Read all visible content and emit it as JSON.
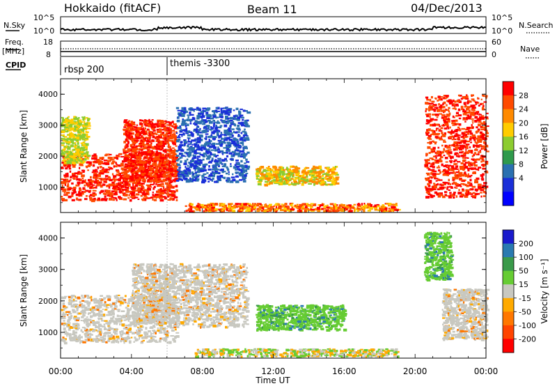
{
  "header": {
    "title": "Hokkaido (fitACF)",
    "beam": "Beam 11",
    "date": "04/Dec/2013"
  },
  "noise_panel": {
    "left_label": "N.Sky",
    "right_label": "N.Search",
    "left_ticks": [
      "10^5",
      "10^0"
    ],
    "right_ticks": [
      "10^5",
      "10^0"
    ]
  },
  "freq_panel": {
    "left_label_1": "Freq.",
    "left_label_2": "[MHz]",
    "right_label": "Nave",
    "left_ticks": [
      "18",
      "8"
    ],
    "right_ticks": [
      "60",
      "0"
    ]
  },
  "cpid": {
    "label": "CPID",
    "program_1": "rbsp 200",
    "program_2": "themis -3300"
  },
  "power_colorbar": {
    "label": "Power [dB]",
    "ticks": [
      "28",
      "24",
      "20",
      "16",
      "12",
      "8",
      "4"
    ],
    "colors": [
      "#ff0000",
      "#ff4a00",
      "#ff8a00",
      "#ffcc00",
      "#8ccc30",
      "#2f9a4c",
      "#2a70b0",
      "#1a2fd8",
      "#0000ff"
    ]
  },
  "velocity_colorbar": {
    "label": "Velocity [m s⁻¹]",
    "ticks": [
      "200",
      "100",
      "50",
      "15",
      "-15",
      "-50",
      "-100",
      "-200"
    ],
    "colors": [
      "#1a1acc",
      "#2a7ab0",
      "#3a9a4a",
      "#66cc33",
      "#c8c8c0",
      "#ffaa00",
      "#ff7700",
      "#ff4400",
      "#ff0000"
    ]
  },
  "axis_common": {
    "ylabel": "Slant Range [km]",
    "xlabel": "Time UT",
    "x_ticks": [
      "00:00",
      "04:00",
      "08:00",
      "12:00",
      "16:00",
      "20:00",
      "00:00"
    ],
    "y_ticks": [
      "1000",
      "2000",
      "3000",
      "4000"
    ]
  },
  "chart_data": [
    {
      "type": "heatmap",
      "title": "",
      "xlabel": "Time UT",
      "ylabel": "Slant Range [km]",
      "xlim_hours": [
        0,
        24
      ],
      "ylim_km": [
        180,
        4500
      ],
      "colorbar": "Power [dB]",
      "regions": [
        {
          "t0": 0.0,
          "t1": 6.5,
          "r0": 600,
          "r1": 2100,
          "value": "24-28"
        },
        {
          "t0": 3.5,
          "t1": 6.5,
          "r0": 1200,
          "r1": 3200,
          "value": "24-28"
        },
        {
          "t0": 0.0,
          "t1": 1.5,
          "r0": 1800,
          "r1": 3300,
          "value": "12-16"
        },
        {
          "t0": 6.5,
          "t1": 10.5,
          "r0": 1200,
          "r1": 3600,
          "value": "4-8"
        },
        {
          "t0": 11.0,
          "t1": 15.5,
          "r0": 1100,
          "r1": 1700,
          "value": "12-20"
        },
        {
          "t0": 7.0,
          "t1": 19.0,
          "r0": 250,
          "r1": 500,
          "value": "16-28"
        },
        {
          "t0": 20.5,
          "t1": 24.0,
          "r0": 700,
          "r1": 4000,
          "value": "24-28"
        }
      ]
    },
    {
      "type": "heatmap",
      "title": "",
      "xlabel": "Time UT",
      "ylabel": "Slant Range [km]",
      "xlim_hours": [
        0,
        24
      ],
      "ylim_km": [
        180,
        4500
      ],
      "colorbar": "Velocity [m s⁻¹]",
      "regions": [
        {
          "t0": 0.0,
          "t1": 6.5,
          "r0": 700,
          "r1": 2200,
          "value": "-15 to 15"
        },
        {
          "t0": 4.0,
          "t1": 6.5,
          "r0": 1300,
          "r1": 3200,
          "value": "-15 to 15"
        },
        {
          "t0": 6.5,
          "t1": 10.5,
          "r0": 1200,
          "r1": 3200,
          "value": "-15 to 15"
        },
        {
          "t0": 11.0,
          "t1": 16.0,
          "r0": 1100,
          "r1": 1900,
          "value": "50-100"
        },
        {
          "t0": 7.5,
          "t1": 19.0,
          "r0": 250,
          "r1": 500,
          "value": "-50 to 50"
        },
        {
          "t0": 20.5,
          "t1": 22.0,
          "r0": 2700,
          "r1": 4200,
          "value": "50-100"
        },
        {
          "t0": 21.5,
          "t1": 24.0,
          "r0": 800,
          "r1": 2400,
          "value": "-15 to 15"
        }
      ]
    }
  ]
}
